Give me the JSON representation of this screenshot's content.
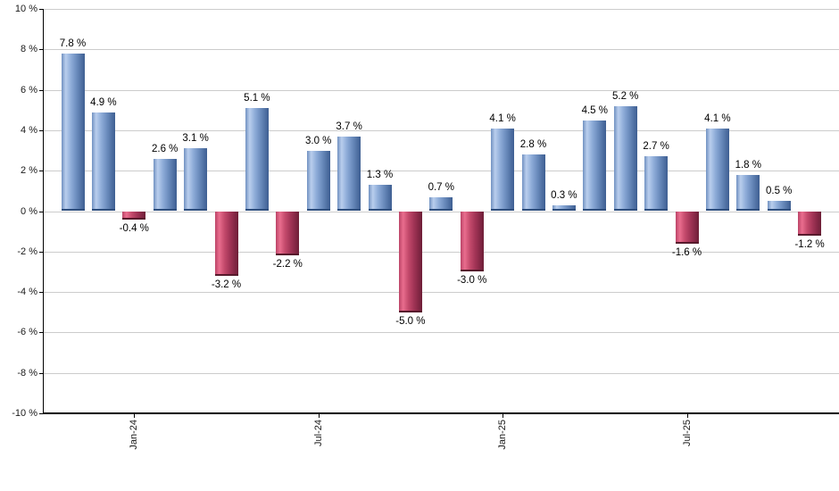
{
  "chart_data": {
    "type": "bar",
    "title": "",
    "xlabel": "",
    "ylabel": "",
    "unit": "%",
    "ylim": [
      -10,
      10
    ],
    "grid": true,
    "legend": "none",
    "y_ticks": [
      {
        "value": 10,
        "label": "10 %"
      },
      {
        "value": 8,
        "label": "8 %"
      },
      {
        "value": 6,
        "label": "6 %"
      },
      {
        "value": 4,
        "label": "4 %"
      },
      {
        "value": 2,
        "label": "2 %"
      },
      {
        "value": 0,
        "label": "0 %"
      },
      {
        "value": -2,
        "label": "-2 %"
      },
      {
        "value": -4,
        "label": "-4 %"
      },
      {
        "value": -6,
        "label": "-6 %"
      },
      {
        "value": -8,
        "label": "-8 %"
      },
      {
        "value": -10,
        "label": "-10 %"
      }
    ],
    "x_ticks": [
      {
        "bar_index": 2,
        "label": "Jan-24"
      },
      {
        "bar_index": 8,
        "label": "Jul-24"
      },
      {
        "bar_index": 14,
        "label": "Jan-25"
      },
      {
        "bar_index": 20,
        "label": "Jul-25"
      }
    ],
    "bars": [
      {
        "value": 7.8,
        "label": "7.8 %"
      },
      {
        "value": 4.9,
        "label": "4.9 %"
      },
      {
        "value": -0.4,
        "label": "-0.4 %"
      },
      {
        "value": 2.6,
        "label": "2.6 %"
      },
      {
        "value": 3.1,
        "label": "3.1 %"
      },
      {
        "value": -3.2,
        "label": "-3.2 %"
      },
      {
        "value": 5.1,
        "label": "5.1 %"
      },
      {
        "value": -2.2,
        "label": "-2.2 %"
      },
      {
        "value": 3.0,
        "label": "3.0 %"
      },
      {
        "value": 3.7,
        "label": "3.7 %"
      },
      {
        "value": 1.3,
        "label": "1.3 %"
      },
      {
        "value": -5.0,
        "label": "-5.0 %"
      },
      {
        "value": 0.7,
        "label": "0.7 %"
      },
      {
        "value": -3.0,
        "label": "-3.0 %"
      },
      {
        "value": 4.1,
        "label": "4.1 %"
      },
      {
        "value": 2.8,
        "label": "2.8 %"
      },
      {
        "value": 0.3,
        "label": "0.3 %"
      },
      {
        "value": 4.5,
        "label": "4.5 %"
      },
      {
        "value": 5.2,
        "label": "5.2 %"
      },
      {
        "value": 2.7,
        "label": "2.7 %"
      },
      {
        "value": -1.6,
        "label": "-1.6 %"
      },
      {
        "value": 4.1,
        "label": "4.1 %"
      },
      {
        "value": 1.8,
        "label": "1.8 %"
      },
      {
        "value": 0.5,
        "label": "0.5 %"
      },
      {
        "value": -1.2,
        "label": "-1.2 %"
      }
    ],
    "colors": {
      "positive": "#7d9dd0",
      "negative": "#c2466b",
      "gridline": "#cccccc",
      "axis": "#000000",
      "label_text": "#000000",
      "background": "#ffffff"
    }
  }
}
